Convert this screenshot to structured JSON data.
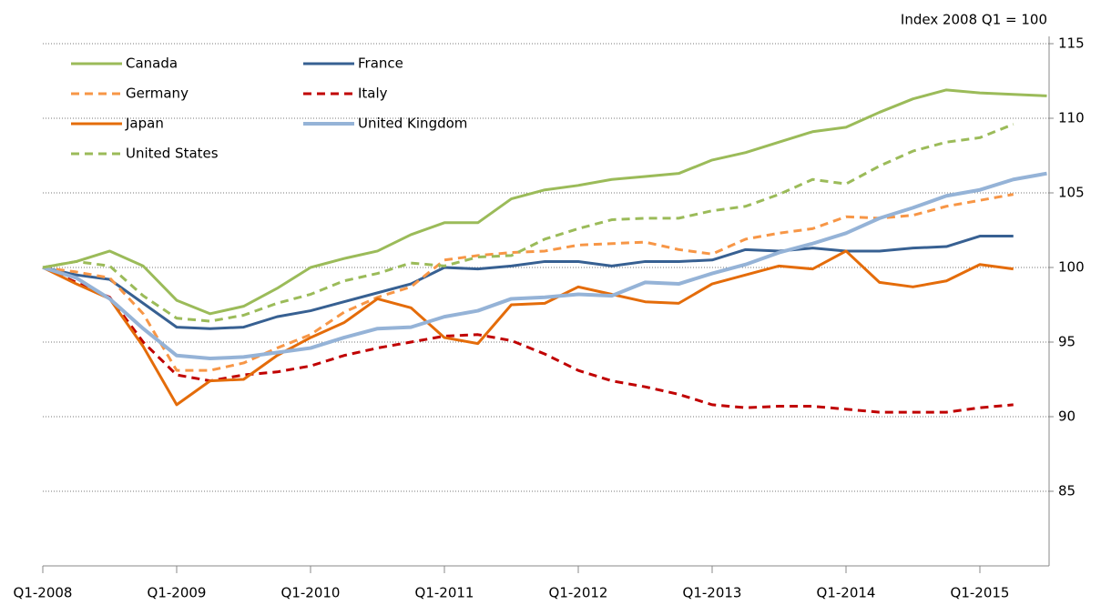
{
  "chart_data": {
    "type": "line",
    "title": "Index 2008 Q1 = 100",
    "categories": [
      "Q1-2008",
      null,
      null,
      null,
      "Q1-2009",
      null,
      null,
      null,
      "Q1-2010",
      null,
      null,
      null,
      "Q1-2011",
      null,
      null,
      null,
      "Q1-2012",
      null,
      null,
      null,
      "Q1-2013",
      null,
      null,
      null,
      "Q1-2014",
      null,
      null,
      null,
      "Q1-2015",
      null,
      null
    ],
    "ylim": [
      80,
      115
    ],
    "yticks": [
      85,
      90,
      95,
      100,
      105,
      110,
      115
    ],
    "grid": true,
    "legend": "top-left",
    "series": [
      {
        "name": "Canada",
        "color": "#9bbb59",
        "dash": false,
        "values": [
          100,
          100.4,
          101.1,
          100.1,
          97.8,
          96.9,
          97.4,
          98.6,
          100,
          100.6,
          101.1,
          102.2,
          103,
          103,
          104.6,
          105.2,
          105.5,
          105.9,
          106.1,
          106.3,
          107.2,
          107.7,
          108.4,
          109.1,
          109.4,
          110.4,
          111.3,
          111.9,
          111.7,
          111.6,
          111.5
        ]
      },
      {
        "name": "France",
        "color": "#376092",
        "dash": false,
        "values": [
          100,
          99.5,
          99.2,
          97.6,
          96,
          95.9,
          96,
          96.7,
          97.1,
          97.7,
          98.3,
          98.9,
          100,
          99.9,
          100.1,
          100.4,
          100.4,
          100.1,
          100.4,
          100.4,
          100.5,
          101.2,
          101.1,
          101.3,
          101.1,
          101.1,
          101.3,
          101.4,
          102.1,
          102.1,
          null
        ]
      },
      {
        "name": "Germany",
        "color": "#f79646",
        "dash": true,
        "values": [
          100,
          99.7,
          99.3,
          96.9,
          93.1,
          93.1,
          93.6,
          94.6,
          95.5,
          97,
          98,
          98.7,
          100.5,
          100.8,
          101,
          101.1,
          101.5,
          101.6,
          101.7,
          101.2,
          100.9,
          101.9,
          102.3,
          102.6,
          103.4,
          103.3,
          103.5,
          104.1,
          104.5,
          104.9,
          null
        ]
      },
      {
        "name": "Italy",
        "color": "#c00000",
        "dash": true,
        "values": [
          100,
          99,
          98,
          95,
          92.8,
          92.4,
          92.8,
          93,
          93.4,
          94.1,
          94.6,
          95,
          95.4,
          95.5,
          95.1,
          94.2,
          93.1,
          92.4,
          92,
          91.5,
          90.8,
          90.6,
          90.7,
          90.7,
          90.5,
          90.3,
          90.3,
          90.3,
          90.6,
          90.8,
          null
        ]
      },
      {
        "name": "Japan",
        "color": "#e46c0a",
        "dash": false,
        "values": [
          100,
          98.9,
          97.9,
          94.7,
          90.8,
          92.4,
          92.5,
          94.1,
          95.3,
          96.3,
          97.9,
          97.3,
          95.3,
          94.9,
          97.5,
          97.6,
          98.7,
          98.2,
          97.7,
          97.6,
          98.9,
          99.5,
          100.1,
          99.9,
          101.1,
          99,
          98.7,
          99.1,
          100.2,
          99.9,
          null
        ]
      },
      {
        "name": "United Kingdom",
        "color": "#95b3d7",
        "dash": false,
        "width": 4,
        "values": [
          100,
          99.3,
          97.9,
          95.9,
          94.1,
          93.9,
          94,
          94.3,
          94.6,
          95.3,
          95.9,
          96,
          96.7,
          97.1,
          97.9,
          98,
          98.2,
          98.1,
          99,
          98.9,
          99.6,
          100.2,
          101,
          101.6,
          102.3,
          103.3,
          104,
          104.8,
          105.2,
          105.9,
          106.3
        ]
      },
      {
        "name": "United States",
        "color": "#9bbb59",
        "dash": true,
        "values": [
          100,
          100.4,
          100.1,
          98.1,
          96.6,
          96.4,
          96.8,
          97.6,
          98.2,
          99.1,
          99.6,
          100.3,
          100.1,
          100.7,
          100.8,
          101.9,
          102.6,
          103.2,
          103.3,
          103.3,
          103.8,
          104.1,
          104.9,
          105.9,
          105.6,
          106.8,
          107.8,
          108.4,
          108.7,
          109.6,
          null
        ]
      }
    ]
  }
}
